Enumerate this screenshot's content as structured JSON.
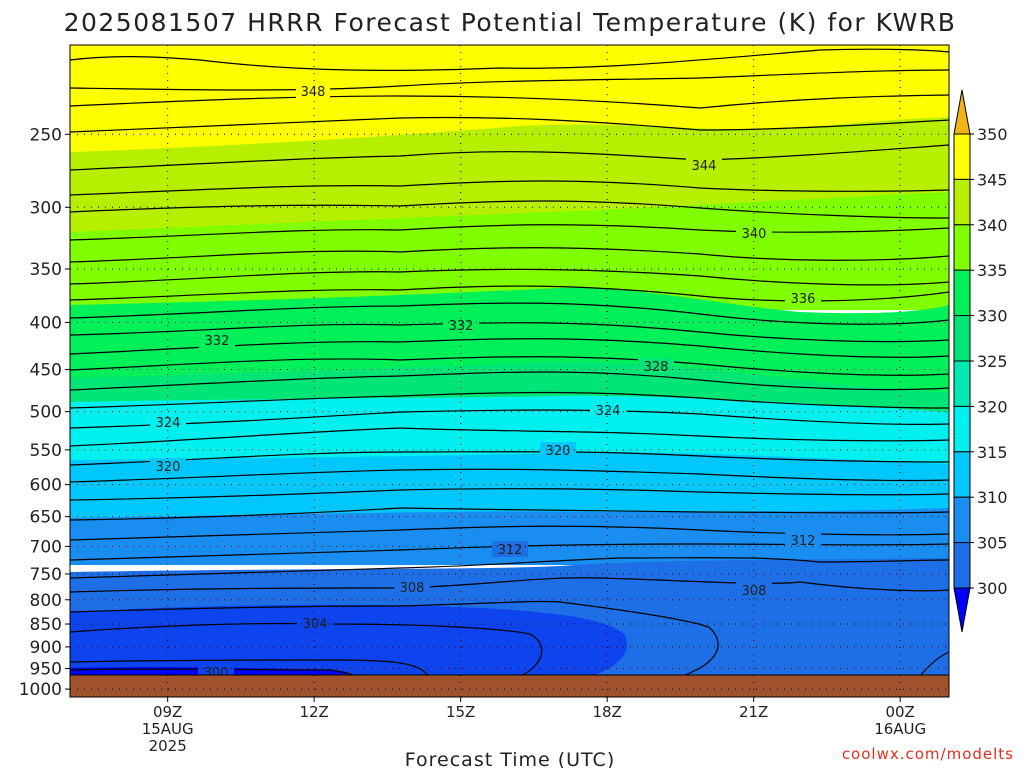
{
  "title": "2025081507 HRRR Forecast Potential Temperature (K) for KWRB",
  "watermark": "coolwx.com/modelts",
  "chart_data": {
    "type": "contour",
    "title": "2025081507 HRRR Forecast Potential Temperature (K) for KWRB",
    "xlabel": "Forecast Time (UTC)",
    "ylabel": "",
    "x_range_hours_since_08Z": [
      -1,
      17
    ],
    "y_log_pressure": true,
    "y_range_hpa": [
      1020,
      200
    ],
    "y_ticks": [
      250,
      300,
      350,
      400,
      450,
      500,
      550,
      600,
      650,
      700,
      750,
      800,
      850,
      900,
      950,
      1000
    ],
    "x_ticks": [
      {
        "label": "09Z",
        "sub": [
          "15AUG",
          "2025"
        ]
      },
      {
        "label": "12Z",
        "sub": []
      },
      {
        "label": "15Z",
        "sub": []
      },
      {
        "label": "18Z",
        "sub": []
      },
      {
        "label": "21Z",
        "sub": []
      },
      {
        "label": "00Z",
        "sub": [
          "16AUG"
        ]
      }
    ],
    "colorbar": {
      "levels": [
        300,
        305,
        310,
        315,
        320,
        325,
        330,
        335,
        340,
        345,
        350
      ],
      "labels": [
        "300",
        "305",
        "310",
        "315",
        "320",
        "325",
        "330",
        "335",
        "340",
        "345",
        "350"
      ],
      "colors": [
        "#0000ff",
        "#0d44ee",
        "#1e6ee6",
        "#1a8ef0",
        "#00c8ff",
        "#00f0f0",
        "#00e8b4",
        "#00e676",
        "#00f05a",
        "#80ff00",
        "#b6f000",
        "#ffff00",
        "#f0b418"
      ]
    },
    "contour_labels": [
      "348",
      "344",
      "340",
      "336",
      "332",
      "332",
      "328",
      "324",
      "324",
      "320",
      "320",
      "312",
      "312",
      "308",
      "308",
      "304",
      "300"
    ],
    "terrain_color": "#a0522d",
    "grid": true
  }
}
